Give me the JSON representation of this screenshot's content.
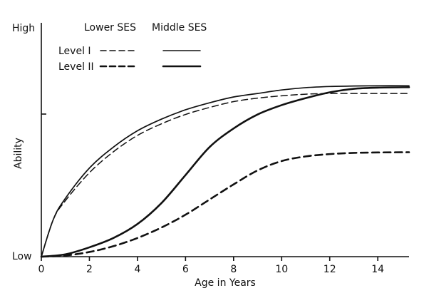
{
  "chart_data": {
    "type": "line",
    "title": "",
    "xlabel": "Age in Years",
    "ylabel": "Ability",
    "xlim": [
      0,
      15.3
    ],
    "ylim": [
      0,
      1
    ],
    "xticks": [
      0,
      2,
      4,
      6,
      8,
      10,
      12,
      14
    ],
    "ytick_labels": {
      "low": "Low",
      "high": "High"
    },
    "grid": false,
    "legend": {
      "placement": "top-left",
      "column_headers": [
        "Lower SES",
        "Middle SES"
      ],
      "row_labels": [
        "Level I",
        "Level II"
      ]
    },
    "series": [
      {
        "name": "Level I",
        "group": "Middle SES",
        "style": "solid-thin",
        "x": [
          0,
          0.5,
          1,
          2,
          3,
          4,
          5,
          6,
          7,
          8,
          9,
          10,
          11,
          12,
          13,
          14,
          15.3
        ],
        "y": [
          0,
          0.16,
          0.25,
          0.38,
          0.47,
          0.54,
          0.59,
          0.63,
          0.66,
          0.685,
          0.7,
          0.715,
          0.725,
          0.73,
          0.732,
          0.733,
          0.733
        ]
      },
      {
        "name": "Level I",
        "group": "Lower SES",
        "style": "dashed-thin",
        "x": [
          0,
          0.5,
          1,
          2,
          3,
          4,
          5,
          6,
          7,
          8,
          9,
          10,
          11,
          12,
          13,
          14,
          15.3
        ],
        "y": [
          0,
          0.16,
          0.24,
          0.36,
          0.45,
          0.52,
          0.57,
          0.61,
          0.64,
          0.665,
          0.68,
          0.69,
          0.697,
          0.7,
          0.7,
          0.7,
          0.7
        ]
      },
      {
        "name": "Level II",
        "group": "Middle SES",
        "style": "solid-thick",
        "x": [
          0,
          1,
          2,
          3,
          4,
          5,
          6,
          7,
          8,
          9,
          10,
          11,
          12,
          13,
          14,
          15.3
        ],
        "y": [
          0,
          0.01,
          0.04,
          0.08,
          0.14,
          0.23,
          0.35,
          0.47,
          0.55,
          0.61,
          0.65,
          0.68,
          0.705,
          0.72,
          0.725,
          0.727
        ]
      },
      {
        "name": "Level II",
        "group": "Lower SES",
        "style": "dashed-thick",
        "x": [
          0,
          1,
          2,
          3,
          4,
          5,
          6,
          7,
          8,
          9,
          10,
          11,
          12,
          13,
          14,
          15.3
        ],
        "y": [
          0,
          0.005,
          0.02,
          0.045,
          0.08,
          0.125,
          0.18,
          0.245,
          0.31,
          0.37,
          0.41,
          0.43,
          0.44,
          0.445,
          0.447,
          0.448
        ]
      }
    ]
  }
}
